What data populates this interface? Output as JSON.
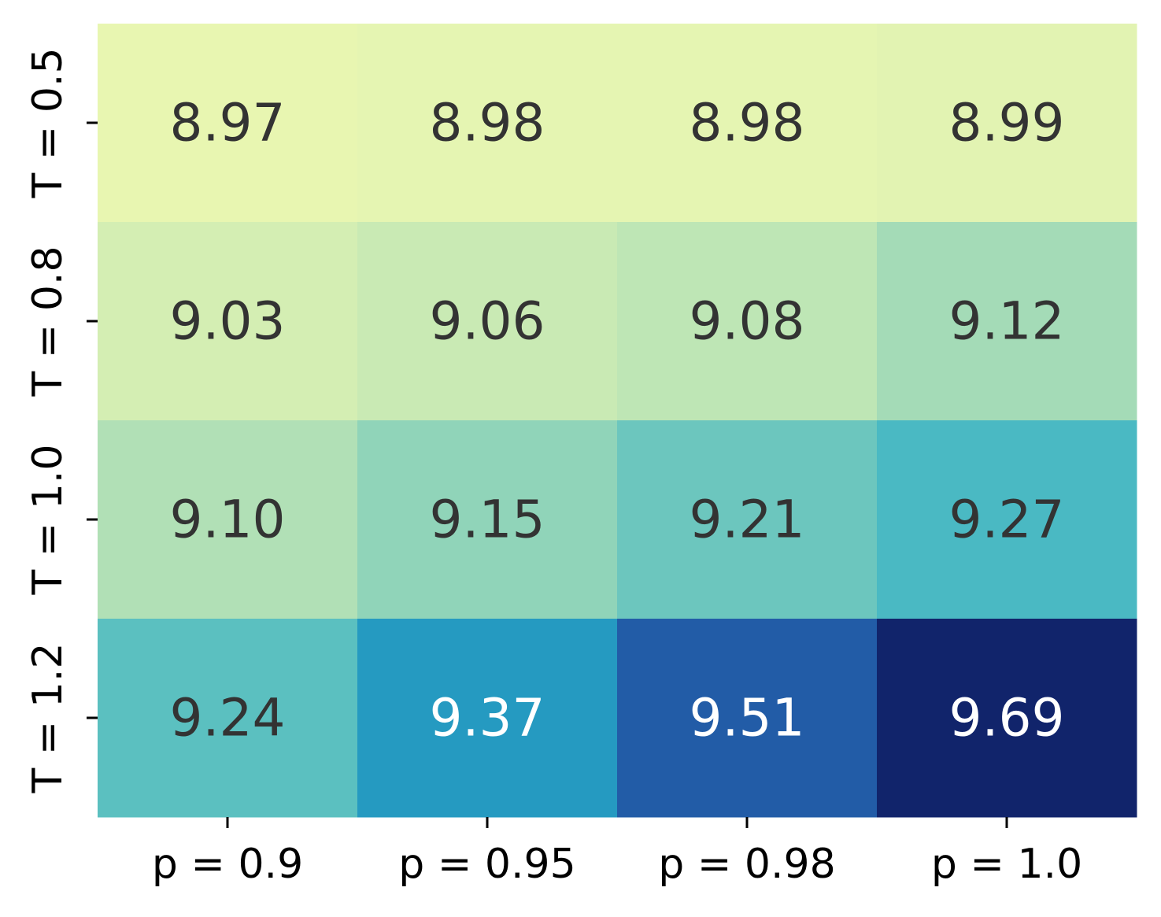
{
  "chart_data": {
    "type": "heatmap",
    "title": "",
    "xlabel": "",
    "ylabel": "",
    "x_categories": [
      "p = 0.9",
      "p = 0.95",
      "p = 0.98",
      "p = 1.0"
    ],
    "y_categories": [
      "T = 0.5",
      "T = 0.8",
      "T = 1.0",
      "T = 1.2"
    ],
    "values": [
      [
        8.97,
        8.98,
        8.98,
        8.99
      ],
      [
        9.03,
        9.06,
        9.08,
        9.12
      ],
      [
        9.1,
        9.15,
        9.21,
        9.27
      ],
      [
        9.24,
        9.37,
        9.51,
        9.69
      ]
    ],
    "value_labels": [
      [
        "8.97",
        "8.98",
        "8.98",
        "8.99"
      ],
      [
        "9.03",
        "9.06",
        "9.08",
        "9.12"
      ],
      [
        "9.10",
        "9.15",
        "9.21",
        "9.27"
      ],
      [
        "9.24",
        "9.37",
        "9.51",
        "9.69"
      ]
    ],
    "colormap": "YlGnBu",
    "color_range": [
      8.97,
      9.69
    ],
    "colorbar": false,
    "grid": false,
    "text_colors": {
      "dark": "#333333",
      "light": "#ffffff"
    }
  }
}
